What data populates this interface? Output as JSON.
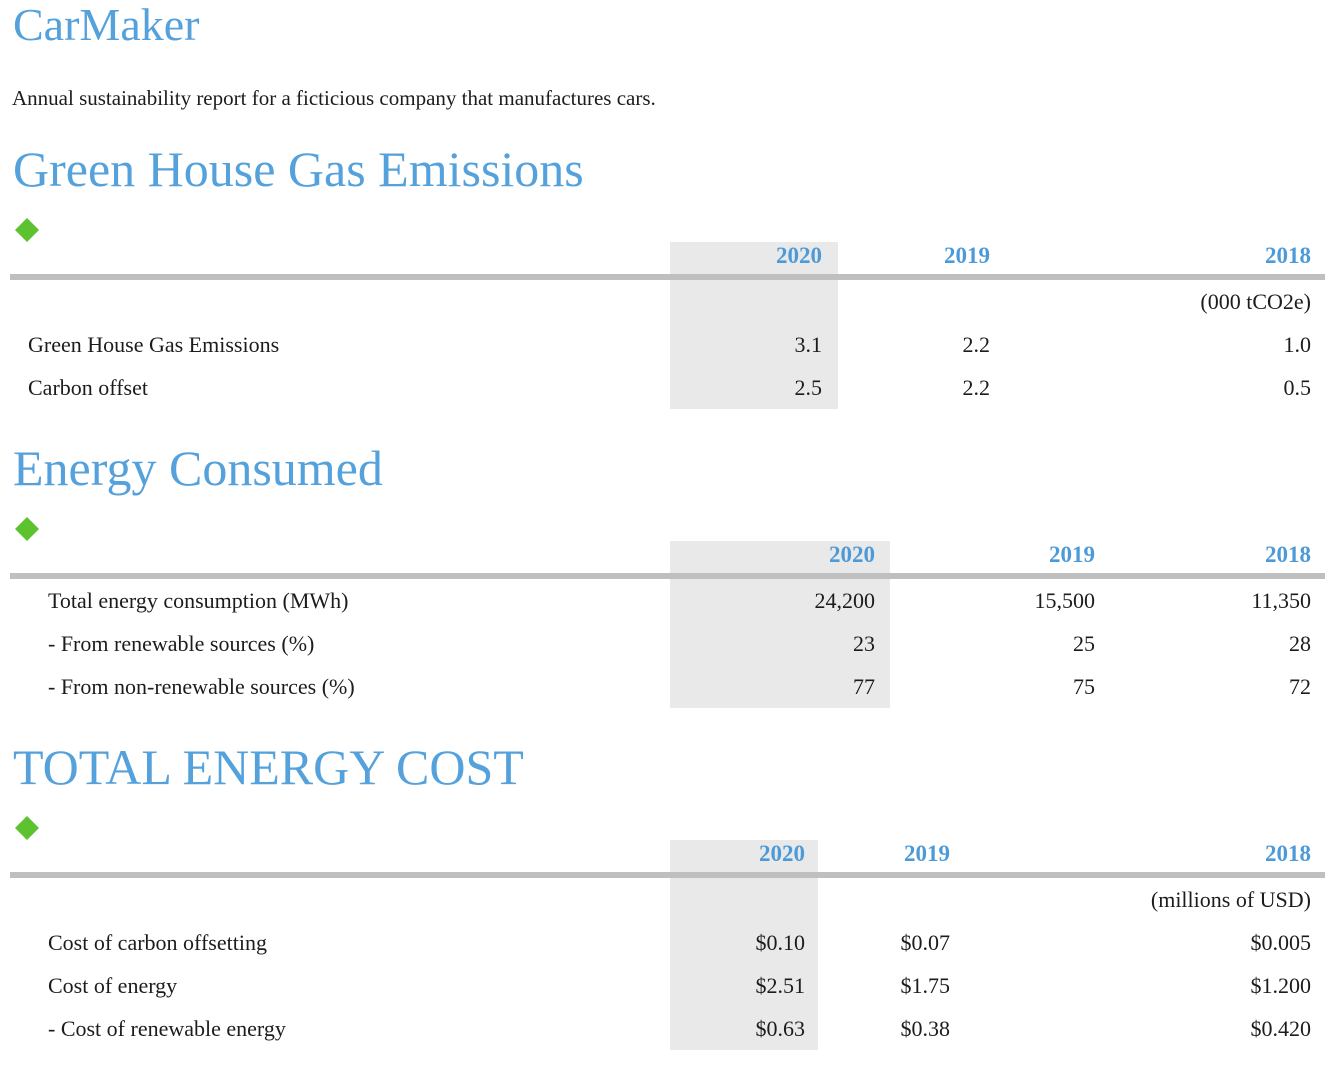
{
  "page": {
    "title": "CarMaker",
    "subtitle": "Annual sustainability report for a ficticious company that manufactures cars."
  },
  "colors": {
    "heading_blue": "#55A1DC",
    "year_blue": "#4D9AD8",
    "diamond_green": "#5CC230",
    "rule_gray": "#BFBFBF",
    "shade_gray": "#E9E9E9",
    "text_ink": "#1C1C1C"
  },
  "sections": [
    {
      "title": "Green House Gas Emissions",
      "years": [
        "2020",
        "2019",
        "2018"
      ],
      "unit": "(000 tCO2e)",
      "rows": [
        {
          "label": "Green House Gas Emissions",
          "values": [
            "3.1",
            "2.2",
            "1.0"
          ]
        },
        {
          "label": "Carbon offset",
          "values": [
            "2.5",
            "2.2",
            "0.5"
          ]
        }
      ]
    },
    {
      "title": "Energy Consumed",
      "years": [
        "2020",
        "2019",
        "2018"
      ],
      "unit": "",
      "rows": [
        {
          "label": "Total energy consumption (MWh)",
          "values": [
            "24,200",
            "15,500",
            "11,350"
          ]
        },
        {
          "label": "- From renewable sources (%)",
          "values": [
            "23",
            "25",
            "28"
          ]
        },
        {
          "label": "- From non-renewable sources (%)",
          "values": [
            "77",
            "75",
            "72"
          ]
        }
      ]
    },
    {
      "title": "TOTAL ENERGY COST",
      "years": [
        "2020",
        "2019",
        "2018"
      ],
      "unit": "(millions of USD)",
      "rows": [
        {
          "label": "Cost of carbon offsetting",
          "values": [
            "$0.10",
            "$0.07",
            "$0.005"
          ]
        },
        {
          "label": "Cost of energy",
          "values": [
            "$2.51",
            "$1.75",
            "$1.200"
          ]
        },
        {
          "label": "- Cost of renewable energy",
          "values": [
            "$0.63",
            "$0.38",
            "$0.420"
          ]
        }
      ]
    }
  ]
}
